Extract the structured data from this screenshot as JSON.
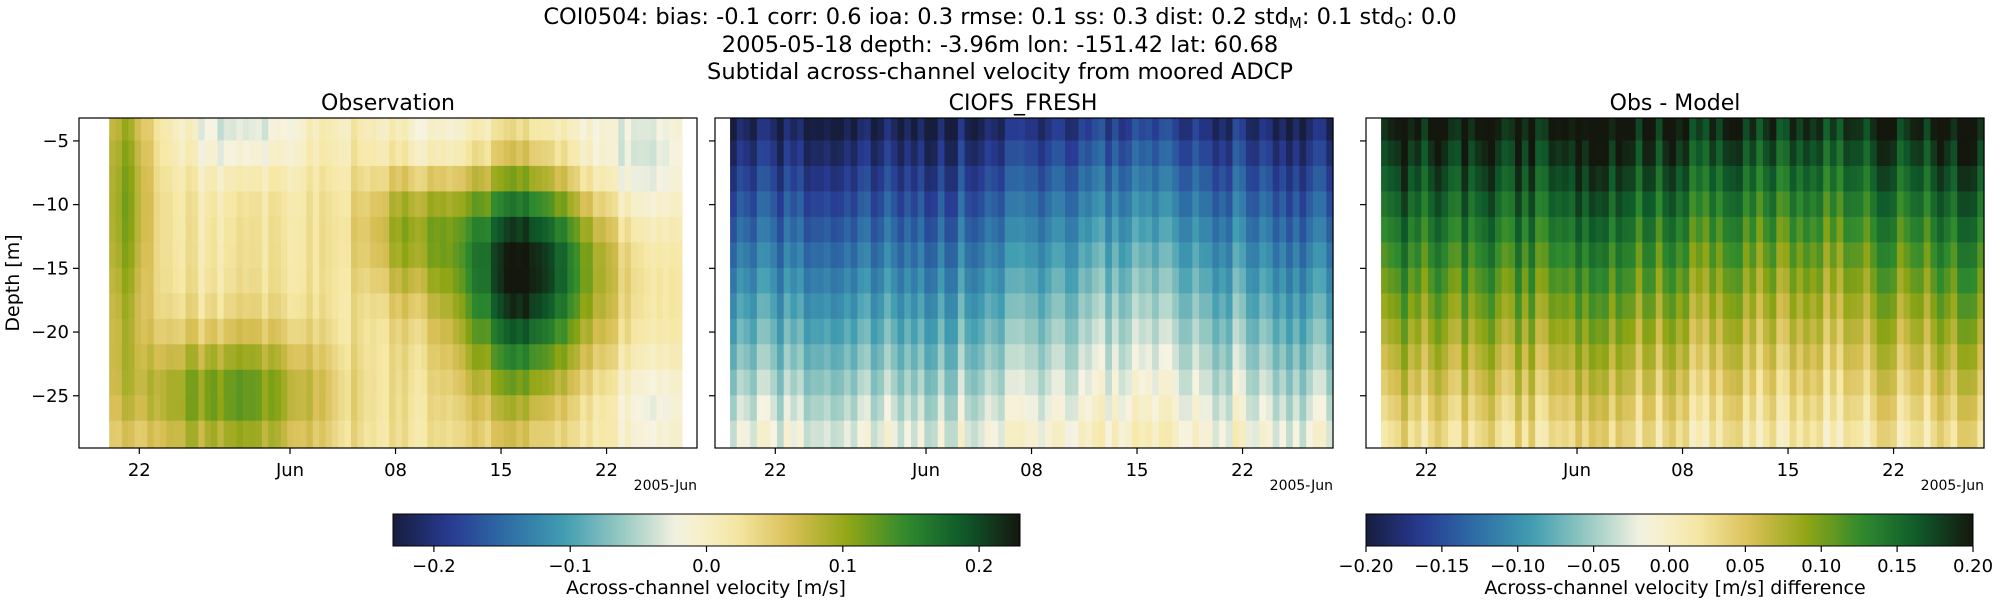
{
  "suptitle": {
    "line1": {
      "pre": "COI0504: bias: -0.1  corr: 0.6  ioa: 0.3  rmse: 0.1  ss: 0.3  dist: 0.2  std",
      "sub1": "M",
      "mid": ": 0.1  std",
      "sub2": "O",
      "post": ": 0.0"
    },
    "line2": "2005-05-18 depth: -3.96m lon: -151.42 lat: 60.68",
    "line3": "Subtidal across-channel velocity from moored ADCP"
  },
  "colors": {
    "colormap_stops": [
      "#161d3d",
      "#283a92",
      "#2e6ea6",
      "#419db1",
      "#96c9c2",
      "#f6f3e2",
      "#f6e8a5",
      "#d8bf55",
      "#8fa514",
      "#2f8a2e",
      "#0f5a2b",
      "#14170e"
    ]
  },
  "chart_data": [
    {
      "type": "heatmap",
      "title": "Observation",
      "ylabel": "Depth [m]",
      "xlabel": "",
      "date_offset_label": "2005-Jun",
      "x_ticks": [
        "22",
        "Jun",
        "08",
        "15",
        "22"
      ],
      "y_ticks": [
        "−5",
        "−10",
        "−15",
        "−20",
        "−25"
      ],
      "ylim": [
        -29.1,
        -3.2
      ],
      "x_range": [
        "2005-05-18",
        "2005-06-28"
      ],
      "data_range": [
        "2005-05-20",
        "2005-06-27"
      ],
      "depth_bins": [
        -3.96,
        -5.96,
        -7.96,
        -9.96,
        -11.96,
        -13.96,
        -15.96,
        -17.96,
        -19.96,
        -21.96,
        -23.96,
        -25.96,
        -27.96
      ],
      "colorbar": "shared",
      "vmin": -0.23,
      "vmax": 0.23,
      "field_estimate": "mostly near 0 to +0.1 m/s; positive (yellow) cores near May 29 (depth -10 to -16 m) and June 15-17 (mid depth), negative (teal) patches near surface in early and late June"
    },
    {
      "type": "heatmap",
      "title": "CIOFS_FRESH",
      "date_offset_label": "2005-Jun",
      "x_ticks": [
        "22",
        "Jun",
        "08",
        "15",
        "22"
      ],
      "ylim": [
        -29.1,
        -3.2
      ],
      "x_range": [
        "2005-05-18",
        "2005-06-28"
      ],
      "data_range": [
        "2005-05-19",
        "2005-06-28"
      ],
      "colorbar": "shared",
      "vmin": -0.23,
      "vmax": 0.23,
      "field_estimate": "about -0.22 m/s at the surface increasing to about -0.03 m/s near -28 m; weakest mid-June"
    },
    {
      "type": "heatmap",
      "title": "Obs - Model",
      "date_offset_label": "2005-Jun",
      "x_ticks": [
        "22",
        "Jun",
        "08",
        "15",
        "22"
      ],
      "ylim": [
        -29.1,
        -3.2
      ],
      "x_range": [
        "2005-05-18",
        "2005-06-28"
      ],
      "data_range": [
        "2005-05-19",
        "2005-06-28"
      ],
      "vmin": -0.2,
      "vmax": 0.2,
      "field_estimate": "about +0.2 m/s at the surface decreasing to about +0.03 m/s near -28 m"
    }
  ],
  "colorbars": [
    {
      "label": "Across-channel velocity [m/s]",
      "vmin": -0.23,
      "vmax": 0.23,
      "tick_values": [
        -0.2,
        -0.1,
        0.0,
        0.1,
        0.2
      ],
      "tick_labels": [
        "−0.2",
        "−0.1",
        "0.0",
        "0.1",
        "0.2"
      ]
    },
    {
      "label": "Across-channel velocity [m/s] difference",
      "vmin": -0.2,
      "vmax": 0.2,
      "tick_values": [
        -0.2,
        -0.15,
        -0.1,
        -0.05,
        0.0,
        0.05,
        0.1,
        0.15,
        0.2
      ],
      "tick_labels": [
        "−0.20",
        "−0.15",
        "−0.10",
        "−0.05",
        "0.00",
        "0.05",
        "0.10",
        "0.15",
        "0.20"
      ]
    }
  ]
}
